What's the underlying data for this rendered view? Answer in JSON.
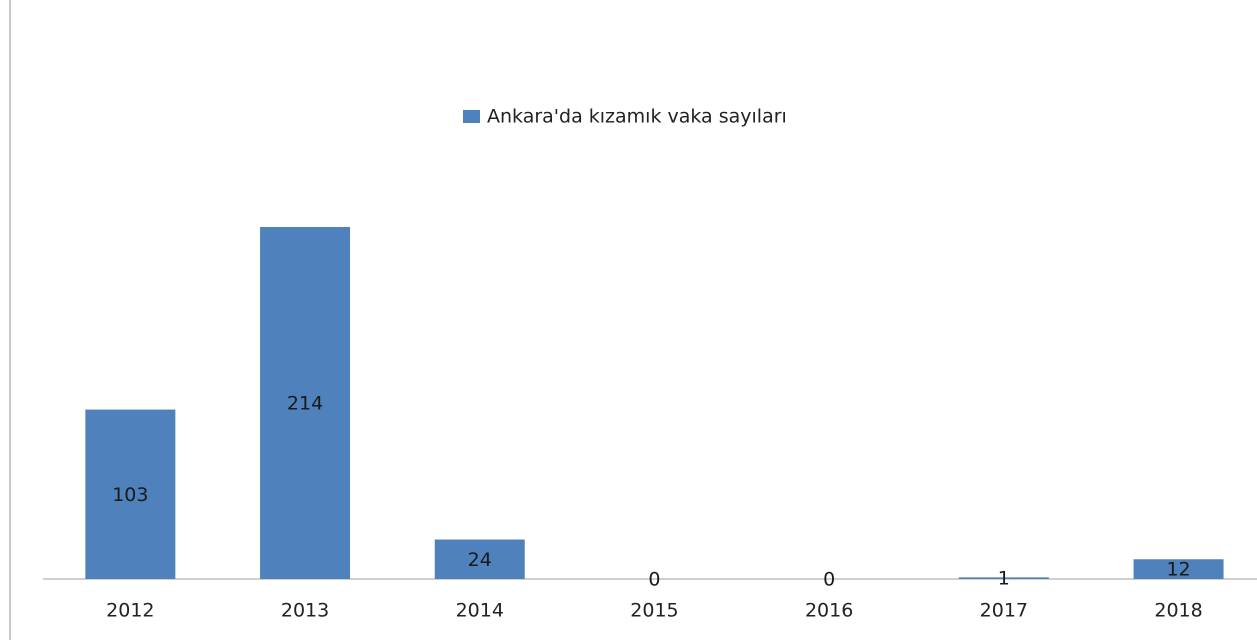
{
  "chart_data": {
    "type": "bar",
    "legend": "Ankara'da kızamık vaka sayıları",
    "categories": [
      "2012",
      "2013",
      "2014",
      "2015",
      "2016",
      "2017",
      "2018"
    ],
    "values": [
      103,
      214,
      24,
      0,
      0,
      1,
      12
    ],
    "color": "#4f81bd",
    "data_labels": true
  }
}
